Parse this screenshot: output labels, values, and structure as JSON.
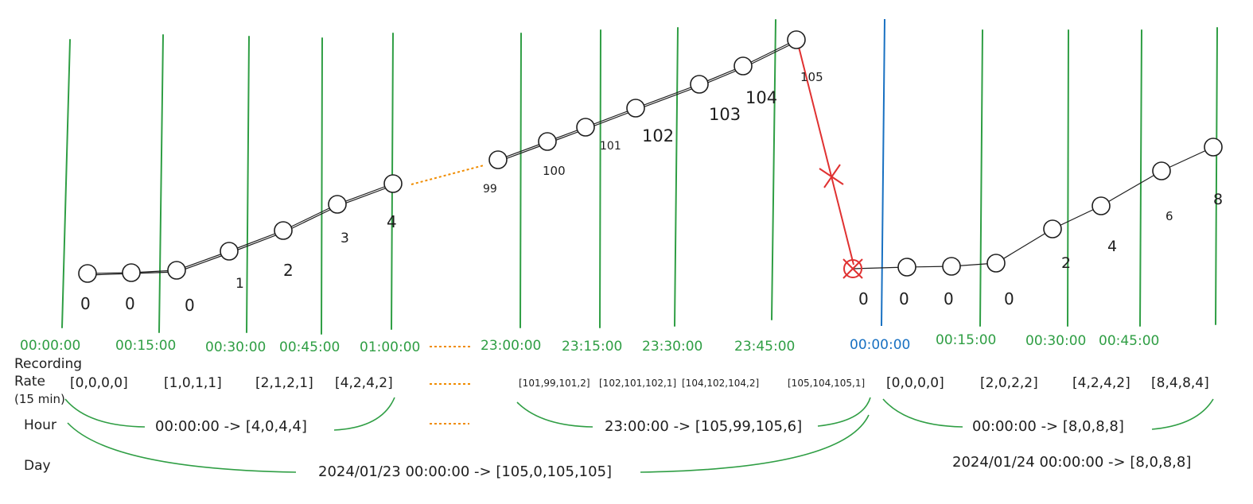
{
  "colors": {
    "ink": "#1e1e1e",
    "grid": "#2f9e44",
    "day_divider": "#1971c2",
    "rejected": "#e03131",
    "gap": "#f08c00"
  },
  "row_labels": {
    "recording": "Recording",
    "rate": "Rate",
    "interval": "(15 min)",
    "hour": "Hour",
    "day": "Day"
  },
  "time_labels": [
    "00:00:00",
    "00:15:00",
    "00:30:00",
    "00:45:00",
    "01:00:00",
    "23:00:00",
    "23:15:00",
    "23:30:00",
    "23:45:00",
    "00:00:00",
    "00:15:00",
    "00:30:00",
    "00:45:00"
  ],
  "counter_values": [
    "0",
    "0",
    "0",
    "1",
    "2",
    "3",
    "4",
    "99",
    "100",
    "101",
    "102",
    "103",
    "104",
    "105",
    "0",
    "0",
    "0",
    "0",
    "2",
    "4",
    "6",
    "8"
  ],
  "rate_buckets": [
    "[0,0,0,0]",
    "[1,0,1,1]",
    "[2,1,2,1]",
    "[4,2,4,2]",
    "[101,99,101,2]",
    "[102,101,102,1]",
    "[104,102,104,2]",
    "[105,104,105,1]",
    "[0,0,0,0]",
    "[2,0,2,2]",
    "[4,2,4,2]",
    "[8,4,8,4]"
  ],
  "hour_summaries": [
    "00:00:00 -> [4,0,4,4]",
    "23:00:00 -> [105,99,105,6]",
    "00:00:00 -> [8,0,8,8]"
  ],
  "day_summaries": [
    "2024/01/23 00:00:00 -> [105,0,105,105]",
    "2024/01/24 00:00:00 -> [8,0,8,8]"
  ]
}
